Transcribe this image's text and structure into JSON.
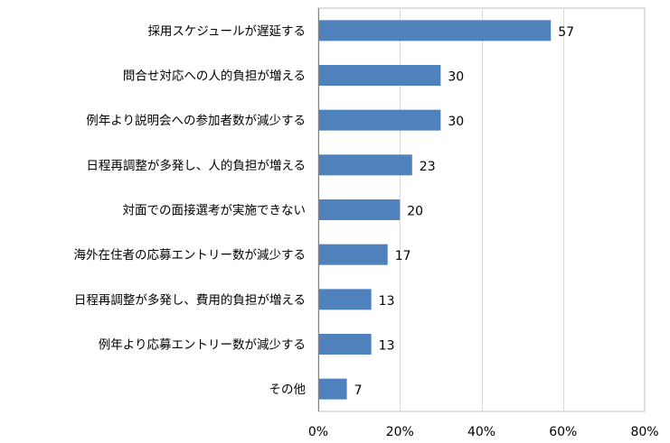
{
  "chart_data": {
    "type": "bar",
    "orientation": "horizontal",
    "categories": [
      "採用スケジュールが遅延する",
      "問合せ対応への人的負担が増える",
      "例年より説明会への参加者数が減少する",
      "日程再調整が多発し、人的負担が増える",
      "対面での面接選考が実施できない",
      "海外在住者の応募エントリー数が減少する",
      "日程再調整が多発し、費用的負担が増える",
      "例年より応募エントリー数が減少する",
      "その他"
    ],
    "values": [
      57,
      30,
      30,
      23,
      20,
      17,
      13,
      13,
      7
    ],
    "value_labels": [
      "57",
      "30",
      "30",
      "23",
      "20",
      "17",
      "13",
      "13",
      "7"
    ],
    "xlim": [
      0,
      80
    ],
    "ticks": [
      0,
      20,
      40,
      60,
      80
    ],
    "tick_labels": [
      "0%",
      "20%",
      "40%",
      "60%",
      "80%"
    ],
    "grid": true,
    "bar_color": "#4f81bd",
    "grid_color": "#d9d9d9",
    "axis_color": "#bfbfbf"
  }
}
